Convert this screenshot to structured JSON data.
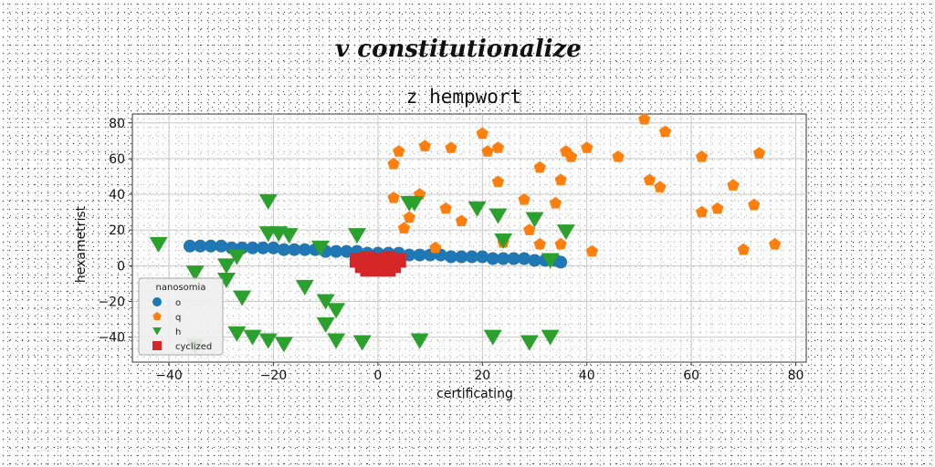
{
  "chart_data": {
    "type": "scatter",
    "suptitle": "v constitutionalize",
    "title": "z hempwort",
    "xlabel": "certificating",
    "ylabel": "hexametrist",
    "xlim": [
      -47,
      82
    ],
    "ylim": [
      -54,
      85
    ],
    "xticks": [
      -40,
      -20,
      0,
      20,
      40,
      60,
      80
    ],
    "yticks": [
      -40,
      -20,
      0,
      20,
      40,
      60,
      80
    ],
    "grid": true,
    "legend": {
      "title": "nanosomia",
      "placement": "lower-left"
    },
    "series": [
      {
        "name": "o",
        "marker": "circle",
        "color": "#1f77b4",
        "points": [
          [
            -36,
            11
          ],
          [
            -34,
            11
          ],
          [
            -32,
            11
          ],
          [
            -30,
            11
          ],
          [
            -28,
            10
          ],
          [
            -26,
            10
          ],
          [
            -24,
            10
          ],
          [
            -22,
            10
          ],
          [
            -20,
            10
          ],
          [
            -18,
            9
          ],
          [
            -16,
            9
          ],
          [
            -14,
            9
          ],
          [
            -12,
            9
          ],
          [
            -10,
            8
          ],
          [
            -8,
            8
          ],
          [
            -6,
            8
          ],
          [
            -4,
            8
          ],
          [
            -2,
            7
          ],
          [
            0,
            7
          ],
          [
            2,
            7
          ],
          [
            4,
            7
          ],
          [
            6,
            6
          ],
          [
            8,
            6
          ],
          [
            10,
            6
          ],
          [
            12,
            6
          ],
          [
            14,
            5
          ],
          [
            16,
            5
          ],
          [
            18,
            5
          ],
          [
            20,
            5
          ],
          [
            22,
            4
          ],
          [
            24,
            4
          ],
          [
            26,
            4
          ],
          [
            28,
            4
          ],
          [
            30,
            3
          ],
          [
            32,
            3
          ],
          [
            34,
            3
          ],
          [
            35,
            2
          ]
        ]
      },
      {
        "name": "q",
        "marker": "pentagon",
        "color": "#ff7f0e",
        "points": [
          [
            51,
            82
          ],
          [
            55,
            75
          ],
          [
            20,
            74
          ],
          [
            9,
            67
          ],
          [
            14,
            66
          ],
          [
            23,
            66
          ],
          [
            4,
            64
          ],
          [
            21,
            64
          ],
          [
            36,
            64
          ],
          [
            40,
            66
          ],
          [
            37,
            61
          ],
          [
            46,
            61
          ],
          [
            62,
            61
          ],
          [
            73,
            63
          ],
          [
            3,
            57
          ],
          [
            31,
            55
          ],
          [
            23,
            47
          ],
          [
            35,
            48
          ],
          [
            52,
            48
          ],
          [
            54,
            44
          ],
          [
            68,
            45
          ],
          [
            3,
            38
          ],
          [
            8,
            40
          ],
          [
            28,
            37
          ],
          [
            34,
            35
          ],
          [
            72,
            34
          ],
          [
            65,
            32
          ],
          [
            62,
            30
          ],
          [
            13,
            32
          ],
          [
            16,
            25
          ],
          [
            6,
            27
          ],
          [
            5,
            21
          ],
          [
            29,
            20
          ],
          [
            31,
            12
          ],
          [
            35,
            12
          ],
          [
            24,
            13
          ],
          [
            11,
            10
          ],
          [
            41,
            8
          ],
          [
            70,
            9
          ],
          [
            76,
            12
          ]
        ]
      },
      {
        "name": "h",
        "marker": "triangle-down",
        "color": "#2ca02c",
        "points": [
          [
            -21,
            36
          ],
          [
            7,
            35
          ],
          [
            19,
            32
          ],
          [
            23,
            28
          ],
          [
            30,
            26
          ],
          [
            -42,
            12
          ],
          [
            -21,
            18
          ],
          [
            -19,
            18
          ],
          [
            -17,
            17
          ],
          [
            -11,
            10
          ],
          [
            -4,
            17
          ],
          [
            6,
            35
          ],
          [
            36,
            19
          ],
          [
            24,
            14
          ],
          [
            33,
            3
          ],
          [
            -35,
            -4
          ],
          [
            -29,
            0
          ],
          [
            -27,
            5
          ],
          [
            -29,
            -8
          ],
          [
            -14,
            -12
          ],
          [
            -26,
            -18
          ],
          [
            -10,
            -20
          ],
          [
            -8,
            -25
          ],
          [
            -10,
            -33
          ],
          [
            -27,
            -38
          ],
          [
            -24,
            -40
          ],
          [
            -21,
            -42
          ],
          [
            -18,
            -44
          ],
          [
            -3,
            -43
          ],
          [
            -8,
            -42
          ],
          [
            8,
            -42
          ],
          [
            22,
            -40
          ],
          [
            33,
            -40
          ],
          [
            29,
            -43
          ],
          [
            -35,
            -45
          ]
        ]
      },
      {
        "name": "cyclized",
        "marker": "square",
        "color": "#d62728",
        "points": [
          [
            -4,
            3
          ],
          [
            -2,
            4
          ],
          [
            0,
            3
          ],
          [
            2,
            4
          ],
          [
            4,
            3
          ],
          [
            -3,
            0
          ],
          [
            -1,
            0
          ],
          [
            1,
            0
          ],
          [
            3,
            0
          ],
          [
            -2,
            -2
          ],
          [
            0,
            -2
          ],
          [
            2,
            -2
          ]
        ]
      }
    ]
  }
}
